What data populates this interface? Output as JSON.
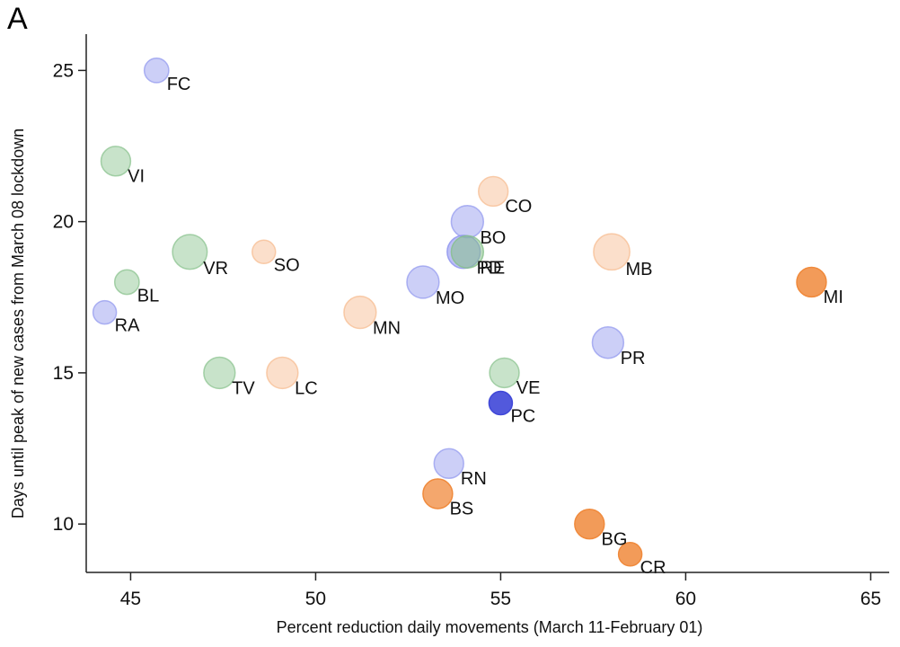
{
  "panel_label": "A",
  "colors": {
    "blue": "#8f95ee",
    "blue_dark": "#3f47d8",
    "green": "#86c08a",
    "peach": "#f7b98c",
    "orange": "#f08a3c",
    "axis": "#222222"
  },
  "chart_data": {
    "type": "scatter",
    "subtype": "bubble",
    "xlabel": "Percent reduction daily movements (March 11-February 01)",
    "ylabel": "Days until peak of new cases from March 08 lockdown",
    "xlim": [
      43.8,
      65.5
    ],
    "ylim": [
      8.4,
      26.2
    ],
    "xticks": [
      45,
      50,
      55,
      60,
      65
    ],
    "yticks": [
      10,
      15,
      20,
      25
    ],
    "grid": false,
    "points": [
      {
        "label": "FC",
        "x": 45.7,
        "y": 25,
        "size": 1.1,
        "color": "blue",
        "opacity": 0.45
      },
      {
        "label": "VI",
        "x": 44.6,
        "y": 22,
        "size": 1.6,
        "color": "green",
        "opacity": 0.45
      },
      {
        "label": "CO",
        "x": 54.8,
        "y": 21,
        "size": 1.6,
        "color": "peach",
        "opacity": 0.45
      },
      {
        "label": "BO",
        "x": 54.1,
        "y": 20,
        "size": 1.9,
        "color": "blue",
        "opacity": 0.45
      },
      {
        "label": "PD",
        "x": 54.0,
        "y": 19,
        "size": 2.0,
        "color": "blue",
        "opacity": 0.6
      },
      {
        "label": "RE",
        "x": 54.1,
        "y": 19,
        "size": 1.9,
        "color": "green",
        "opacity": 0.55
      },
      {
        "label": "VR",
        "x": 46.6,
        "y": 19,
        "size": 2.2,
        "color": "green",
        "opacity": 0.45
      },
      {
        "label": "SO",
        "x": 48.6,
        "y": 19,
        "size": 1.0,
        "color": "peach",
        "opacity": 0.45
      },
      {
        "label": "MB",
        "x": 58.0,
        "y": 19,
        "size": 2.4,
        "color": "peach",
        "opacity": 0.45
      },
      {
        "label": "BL",
        "x": 44.9,
        "y": 18,
        "size": 1.1,
        "color": "green",
        "opacity": 0.45
      },
      {
        "label": "MO",
        "x": 52.9,
        "y": 18,
        "size": 1.9,
        "color": "blue",
        "opacity": 0.45
      },
      {
        "label": "MI",
        "x": 63.4,
        "y": 18,
        "size": 1.6,
        "color": "orange",
        "opacity": 0.85
      },
      {
        "label": "RA",
        "x": 44.3,
        "y": 17,
        "size": 1.0,
        "color": "blue",
        "opacity": 0.45
      },
      {
        "label": "MN",
        "x": 51.2,
        "y": 17,
        "size": 1.9,
        "color": "peach",
        "opacity": 0.45
      },
      {
        "label": "PR",
        "x": 57.9,
        "y": 16,
        "size": 1.8,
        "color": "blue",
        "opacity": 0.45
      },
      {
        "label": "TV",
        "x": 47.4,
        "y": 15,
        "size": 1.8,
        "color": "green",
        "opacity": 0.45
      },
      {
        "label": "LC",
        "x": 49.1,
        "y": 15,
        "size": 1.8,
        "color": "peach",
        "opacity": 0.45
      },
      {
        "label": "VE",
        "x": 55.1,
        "y": 15,
        "size": 1.6,
        "color": "green",
        "opacity": 0.45
      },
      {
        "label": "PC",
        "x": 55.0,
        "y": 14,
        "size": 1.0,
        "color": "blue_dark",
        "opacity": 0.9
      },
      {
        "label": "RN",
        "x": 53.6,
        "y": 12,
        "size": 1.6,
        "color": "blue",
        "opacity": 0.45
      },
      {
        "label": "BS",
        "x": 53.3,
        "y": 11,
        "size": 1.6,
        "color": "orange",
        "opacity": 0.75
      },
      {
        "label": "BG",
        "x": 57.4,
        "y": 10,
        "size": 1.6,
        "color": "orange",
        "opacity": 0.85
      },
      {
        "label": "CR",
        "x": 58.5,
        "y": 9,
        "size": 1.0,
        "color": "orange",
        "opacity": 0.85
      }
    ]
  }
}
